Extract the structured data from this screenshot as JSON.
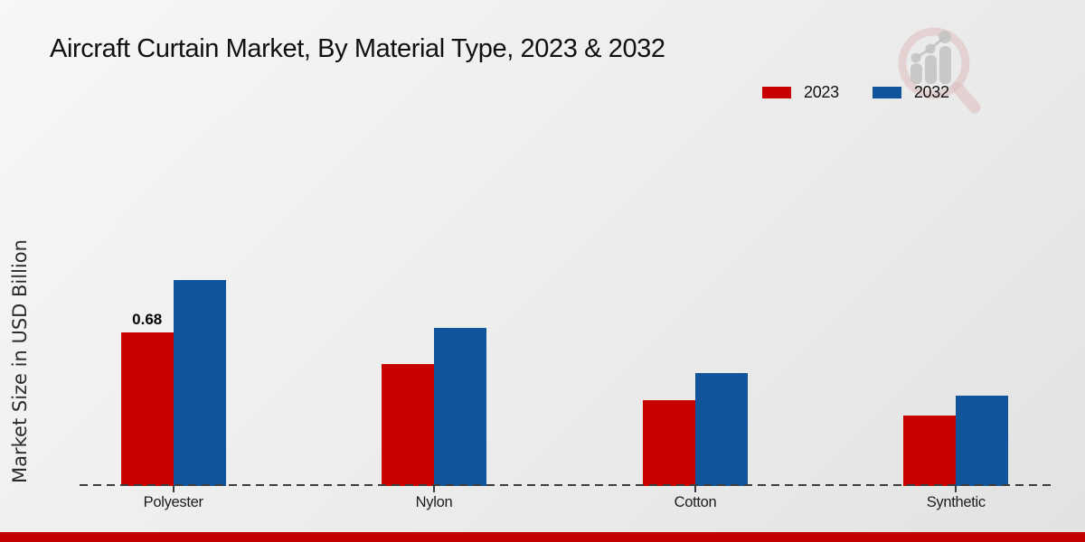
{
  "chart_data": {
    "type": "bar",
    "title": "Aircraft Curtain Market, By Material Type, 2023 & 2032",
    "ylabel": "Market Size in USD Billion",
    "xlabel": "",
    "categories": [
      "Polyester",
      "Nylon",
      "Cotton",
      "Synthetic"
    ],
    "series": [
      {
        "name": "2023",
        "color": "#c80101",
        "values": [
          0.68,
          0.54,
          0.38,
          0.31
        ]
      },
      {
        "name": "2032",
        "color": "#10549c",
        "values": [
          0.91,
          0.7,
          0.5,
          0.4
        ]
      }
    ],
    "annotations": [
      {
        "category": "Polyester",
        "series": "2023",
        "text": "0.68"
      }
    ],
    "ylim": [
      0,
      1.1
    ],
    "grid": false,
    "axis_style": "dashed-baseline-only",
    "legend_position": "top-right"
  },
  "branding": {
    "watermark_icon": "magnifier-growth-chart-logo",
    "footer_bar_color": "#c30101"
  }
}
